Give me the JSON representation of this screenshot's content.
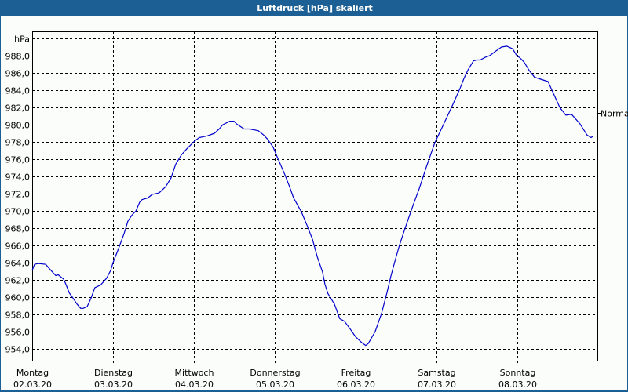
{
  "window": {
    "title": "Luftdruck [hPa] skaliert"
  },
  "colors": {
    "titlebar": "#1c5f94",
    "background": "#fbfdfb",
    "line": "#0000cc",
    "grid": "#000000"
  },
  "chart_data": {
    "type": "line",
    "title": "Luftdruck [hPa] skaliert",
    "xlabel": "",
    "ylabel": "hPa",
    "x_unit": "hours since Montag 02.03.20 00:00",
    "xlim": [
      0,
      168
    ],
    "ylim": [
      952.6,
      991.8
    ],
    "y_ticks": [
      954,
      956,
      958,
      960,
      962,
      964,
      966,
      968,
      970,
      972,
      974,
      976,
      978,
      980,
      982,
      984,
      986,
      988,
      990
    ],
    "y_tick_labels": [
      "954,0",
      "956,0",
      "958,0",
      "960,0",
      "962,0",
      "964,0",
      "966,0",
      "968,0",
      "970,0",
      "972,0",
      "974,0",
      "976,0",
      "978,0",
      "980,0",
      "982,0",
      "984,0",
      "986,0",
      "988,0",
      "hPa"
    ],
    "x_ticks": [
      {
        "hour": 0,
        "day": "Montag",
        "date": "02.03.20"
      },
      {
        "hour": 24,
        "day": "Dienstag",
        "date": "03.03.20"
      },
      {
        "hour": 48,
        "day": "Mittwoch",
        "date": "04.03.20"
      },
      {
        "hour": 72,
        "day": "Donnerstag",
        "date": "05.03.20"
      },
      {
        "hour": 96,
        "day": "Freitag",
        "date": "06.03.20"
      },
      {
        "hour": 120,
        "day": "Samstag",
        "date": "07.03.20"
      },
      {
        "hour": 144,
        "day": "Sonntag",
        "date": "08.03.20"
      }
    ],
    "grid": true,
    "reference_line": {
      "label": "Normal",
      "value": 981.4
    },
    "series": [
      {
        "name": "Luftdruck",
        "x": [
          0,
          0.7,
          1.9,
          4.0,
          5.1,
          7.0,
          7.7,
          9.3,
          10.0,
          11.0,
          12.1,
          13.3,
          14.4,
          15.1,
          16.3,
          17.5,
          18.6,
          20.3,
          22.1,
          23.3,
          24.0,
          25.6,
          27.3,
          28.4,
          29.6,
          30.8,
          31.9,
          32.6,
          34.3,
          35.6,
          37.7,
          39.6,
          41.2,
          42.6,
          44.3,
          45.9,
          48.2,
          49.6,
          52.0,
          54.1,
          55.5,
          56.6,
          58.7,
          59.9,
          60.6,
          62.9,
          64.5,
          67.1,
          68.7,
          69.9,
          71.5,
          72.9,
          75.0,
          76.4,
          77.6,
          79.9,
          81.6,
          83.2,
          84.6,
          86.2,
          86.9,
          87.8,
          89.7,
          91.3,
          92.7,
          94.4,
          96.0,
          97.9,
          99.0,
          99.7,
          101.8,
          103.7,
          105.3,
          106.5,
          107.9,
          109.0,
          110.2,
          111.4,
          113.0,
          114.9,
          117.0,
          119.5,
          122.3,
          124.7,
          127.0,
          128.2,
          129.3,
          131.0,
          132.1,
          133.0,
          134.4,
          135.8,
          137.5,
          139.3,
          140.9,
          142.6,
          143.7,
          145.2,
          146.1,
          147.5,
          149.1,
          153.1,
          154.5,
          156.6,
          158.4,
          160.1,
          162.6,
          164.7,
          165.9,
          166.6
        ],
        "values": [
          963.1,
          963.8,
          963.9,
          963.8,
          963.3,
          962.5,
          962.6,
          962.1,
          961.5,
          960.5,
          959.9,
          959.2,
          958.7,
          958.7,
          958.9,
          959.9,
          961.1,
          961.4,
          962.2,
          963.1,
          964.0,
          965.6,
          967.4,
          968.8,
          969.5,
          970.0,
          971.0,
          971.3,
          971.5,
          971.9,
          972.1,
          972.8,
          973.8,
          975.4,
          976.5,
          977.2,
          978.1,
          978.5,
          978.7,
          979.0,
          979.5,
          980.0,
          980.4,
          980.4,
          980.1,
          979.5,
          979.5,
          979.3,
          978.8,
          978.3,
          977.4,
          976.1,
          974.2,
          972.8,
          971.5,
          969.9,
          968.3,
          966.7,
          964.7,
          962.9,
          961.5,
          960.4,
          959.2,
          957.5,
          957.2,
          956.3,
          955.4,
          954.7,
          954.4,
          954.6,
          956.0,
          958.1,
          960.5,
          962.5,
          964.5,
          966.0,
          967.4,
          968.8,
          970.6,
          972.6,
          975.1,
          977.9,
          980.2,
          982.2,
          984.2,
          985.4,
          986.3,
          987.4,
          987.5,
          987.5,
          987.8,
          988.0,
          988.5,
          989.0,
          989.1,
          988.8,
          988.1,
          987.6,
          987.2,
          986.3,
          985.5,
          985.0,
          983.8,
          982.0,
          981.1,
          981.2,
          980.1,
          978.8,
          978.5,
          978.7
        ]
      }
    ]
  }
}
